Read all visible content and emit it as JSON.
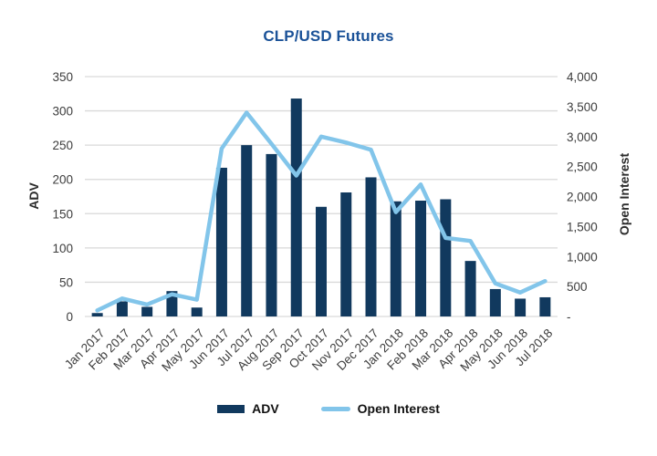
{
  "title": "CLP/USD Futures",
  "colors": {
    "title_blue": "#1b5298",
    "bar_navy": "#11395e",
    "line_blue": "#82c5ea",
    "grid_gray": "#d9d9d9",
    "tick_text": "#3d3d3d"
  },
  "axes": {
    "left_title": "ADV",
    "right_title": "Open Interest",
    "left_ticks": [
      "0",
      "50",
      "100",
      "150",
      "200",
      "250",
      "300",
      "350"
    ],
    "right_ticks": [
      "-",
      "500",
      "1,000",
      "1,500",
      "2,000",
      "2,500",
      "3,000",
      "3,500",
      "4,000"
    ]
  },
  "legend": {
    "items": [
      {
        "label": "ADV",
        "type": "bar",
        "color": "#11395e"
      },
      {
        "label": "Open Interest",
        "type": "line",
        "color": "#82c5ea"
      }
    ]
  },
  "chart_data": {
    "type": "bar",
    "subtype": "combo-bar-line-dual-axis",
    "title": "CLP/USD Futures",
    "categories": [
      "Jan 2017",
      "Feb 2017",
      "Mar 2017",
      "Apr 2017",
      "May 2017",
      "Jun 2017",
      "Jul 2017",
      "Aug 2017",
      "Sep 2017",
      "Oct 2017",
      "Nov 2017",
      "Dec 2017",
      "Jan 2018",
      "Feb 2018",
      "Mar 2018",
      "Apr 2018",
      "May 2018",
      "Jun 2018",
      "Jul 2018"
    ],
    "series": [
      {
        "name": "ADV",
        "type": "bar",
        "axis": "left",
        "color": "#11395e",
        "values": [
          5,
          22,
          14,
          37,
          13,
          217,
          250,
          237,
          318,
          160,
          181,
          203,
          168,
          169,
          171,
          81,
          40,
          26,
          28
        ]
      },
      {
        "name": "Open Interest",
        "type": "line",
        "axis": "right",
        "color": "#82c5ea",
        "values": [
          100,
          300,
          200,
          370,
          280,
          2800,
          3400,
          2880,
          2350,
          3000,
          2900,
          2780,
          1740,
          2200,
          1310,
          1260,
          550,
          400,
          590
        ]
      }
    ],
    "left_axis": {
      "label": "ADV",
      "min": 0,
      "max": 350,
      "step": 50
    },
    "right_axis": {
      "label": "Open Interest",
      "min": 0,
      "max": 4000,
      "step": 500,
      "zero_label": "-"
    },
    "grid": true,
    "legend_position": "bottom",
    "x_label_rotation": -45
  }
}
